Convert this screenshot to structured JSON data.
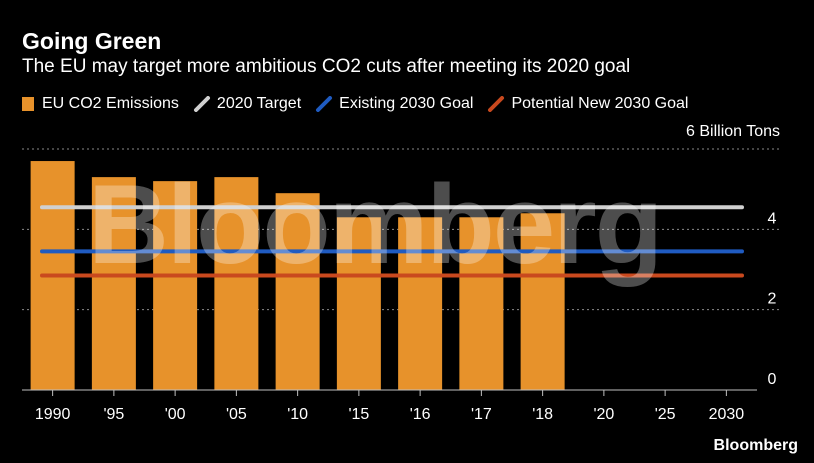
{
  "header": {
    "title": "Going Green",
    "subtitle": "The EU may target more ambitious CO2 cuts after meeting its 2020 goal"
  },
  "legend": {
    "items": [
      {
        "label": "EU CO2 Emissions",
        "color": "#e7922b",
        "icon": "bar-swatch-icon"
      },
      {
        "label": "2020 Target",
        "color": "#d0d0d0",
        "icon": "line-swatch-icon"
      },
      {
        "label": "Existing 2030 Goal",
        "color": "#1f5bc1",
        "icon": "line-swatch-icon"
      },
      {
        "label": "Potential New 2030 Goal",
        "color": "#c9491e",
        "icon": "line-swatch-icon"
      }
    ]
  },
  "watermark": "Bloomberg",
  "source": "Bloomberg",
  "chart_data": {
    "type": "bar",
    "title": "Going Green",
    "unit_label": "6 Billion Tons",
    "categories": [
      "1990",
      "'95",
      "'00",
      "'05",
      "'10",
      "'15",
      "'16",
      "'17",
      "'18",
      "'20",
      "'25",
      "2030"
    ],
    "series": [
      {
        "name": "EU CO2 Emissions",
        "type": "bar",
        "color": "#e7922b",
        "values": [
          5.7,
          5.3,
          5.2,
          5.3,
          4.9,
          4.3,
          4.3,
          4.3,
          4.4,
          null,
          null,
          null
        ]
      }
    ],
    "reference_lines": [
      {
        "name": "2020 Target",
        "value": 4.55,
        "color": "#d0d0d0"
      },
      {
        "name": "Existing 2030 Goal",
        "value": 3.45,
        "color": "#1f5bc1"
      },
      {
        "name": "Potential New 2030 Goal",
        "value": 2.85,
        "color": "#c9491e"
      }
    ],
    "y_ticks": [
      0,
      2,
      4,
      6
    ],
    "y_tick_labels": [
      "0",
      "2",
      "4",
      ""
    ],
    "ylim": [
      0,
      6
    ],
    "y_axis_side": "right",
    "grid": true,
    "xlabel": "",
    "ylabel": ""
  }
}
